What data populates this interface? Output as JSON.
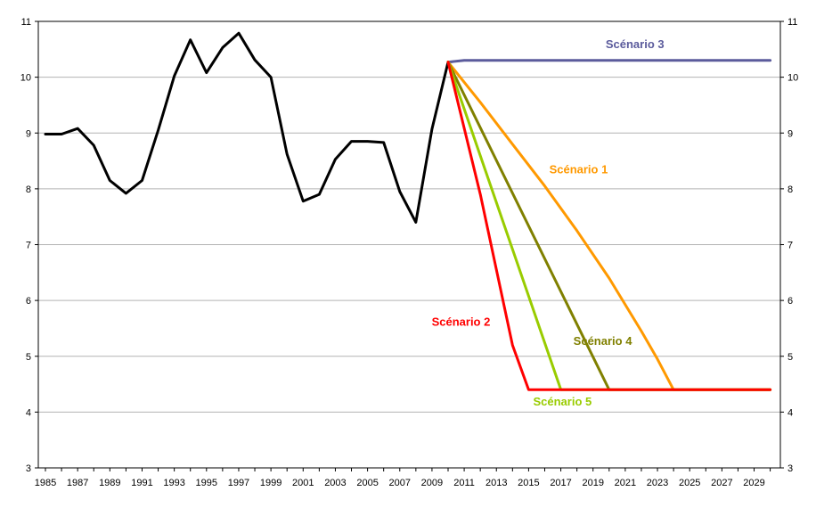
{
  "chart_data": {
    "type": "line",
    "ylim": [
      3,
      11
    ],
    "y_ticks": [
      3,
      4,
      5,
      6,
      7,
      8,
      9,
      10,
      11
    ],
    "y_tick_labels": [
      "3",
      "4",
      "5",
      "6",
      "7",
      "8",
      "9",
      "10",
      "11"
    ],
    "xlim": [
      1985,
      2030
    ],
    "x_ticks": [
      1985,
      1987,
      1989,
      1991,
      1993,
      1995,
      1997,
      1999,
      2001,
      2003,
      2005,
      2007,
      2009,
      2011,
      2013,
      2015,
      2017,
      2019,
      2021,
      2023,
      2025,
      2027,
      2029
    ],
    "x_tick_labels": [
      "1985",
      "1987",
      "1989",
      "1991",
      "1993",
      "1995",
      "1997",
      "1999",
      "2001",
      "2003",
      "2005",
      "2007",
      "2009",
      "2011",
      "2013",
      "2015",
      "2017",
      "2019",
      "2021",
      "2023",
      "2025",
      "2027",
      "2029"
    ],
    "grid": "horizontal",
    "series": [
      {
        "color": "#000000",
        "x": [
          1985,
          1986,
          1987,
          1988,
          1989,
          1990,
          1991,
          1992,
          1993,
          1994,
          1995,
          1996,
          1997,
          1998,
          1999,
          2000,
          2001,
          2002,
          2003,
          2004,
          2005,
          2006,
          2007,
          2008,
          2009,
          2010
        ],
        "y": [
          8.98,
          8.98,
          9.08,
          8.78,
          8.15,
          7.92,
          8.15,
          9.05,
          10.02,
          10.67,
          10.08,
          10.53,
          10.79,
          10.31,
          10.0,
          8.62,
          7.78,
          7.9,
          8.53,
          8.85,
          8.85,
          8.83,
          7.95,
          7.4,
          9.07,
          10.27
        ]
      },
      {
        "name": "Scénario 3",
        "color": "#5b5b9c",
        "x": [
          2010,
          2011,
          2030
        ],
        "y": [
          10.27,
          10.3,
          10.3
        ]
      },
      {
        "name": "Scénario 1",
        "color": "#ff9900",
        "x": [
          2010,
          2012,
          2014,
          2016,
          2018,
          2020,
          2022,
          2023,
          2024,
          2030
        ],
        "y": [
          10.27,
          9.55,
          8.8,
          8.05,
          7.25,
          6.4,
          5.45,
          4.95,
          4.4,
          4.4
        ]
      },
      {
        "name": "Scénario 4",
        "color": "#808000",
        "x": [
          2010,
          2020,
          2030
        ],
        "y": [
          10.27,
          4.4,
          4.4
        ]
      },
      {
        "name": "Scénario 5",
        "color": "#99cc00",
        "x": [
          2010,
          2017,
          2030
        ],
        "y": [
          10.27,
          4.4,
          4.4
        ]
      },
      {
        "name": "Scénario 2",
        "color": "#ff0000",
        "x": [
          2010,
          2012,
          2014,
          2015,
          2030
        ],
        "y": [
          10.27,
          7.9,
          5.2,
          4.4,
          4.4
        ]
      }
    ],
    "annotations": [
      {
        "text": "Scénario 3",
        "color": "#5b5b9c",
        "x": 2021.6,
        "y": 10.52
      },
      {
        "text": "Scénario 1",
        "color": "#ff9900",
        "x": 2018.1,
        "y": 8.28
      },
      {
        "text": "Scénario 2",
        "color": "#ff0000",
        "x": 2010.8,
        "y": 5.55
      },
      {
        "text": "Scénario 4",
        "color": "#808000",
        "x": 2019.6,
        "y": 5.2
      },
      {
        "text": "Scénario 5",
        "color": "#99cc00",
        "x": 2017.1,
        "y": 4.12
      }
    ]
  }
}
